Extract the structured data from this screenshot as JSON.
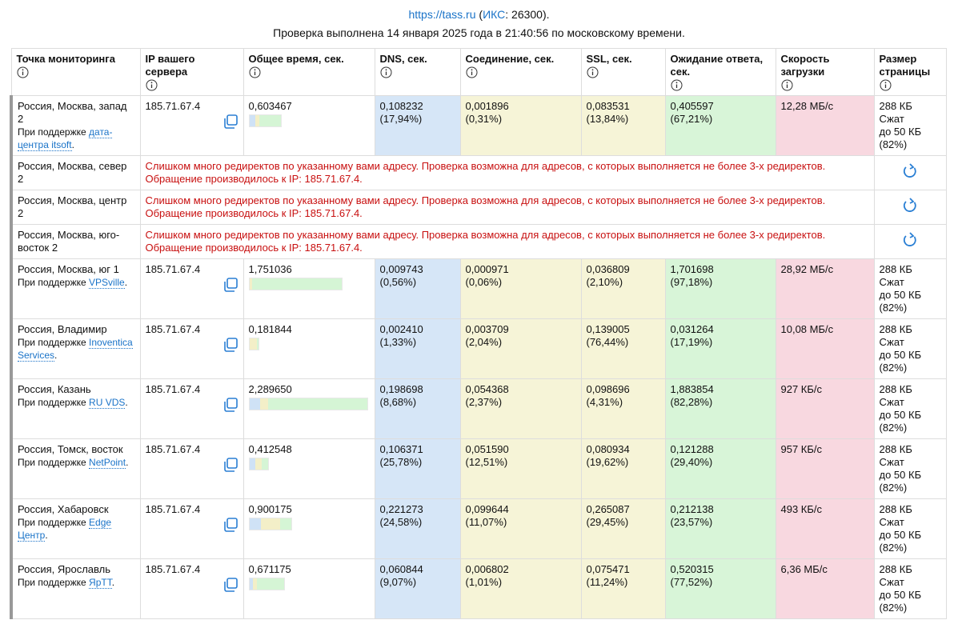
{
  "header": {
    "source_line": [
      {
        "text": "https://tass.ru",
        "link": true
      },
      {
        "text": " ("
      },
      {
        "text": "ИКС",
        "link": true
      },
      {
        "text": ": 26300)."
      }
    ],
    "check_line": "Проверка выполнена 14 января 2025 года в 21:40:56 по московскому времени."
  },
  "table": {
    "columns": [
      "Точка мониторинга",
      "IP вашего сервера",
      "Общее время, сек.",
      "DNS, сек.",
      "Соединение, сек.",
      "SSL, сек.",
      "Ожидание ответа, сек.",
      "Скорость загрузки",
      "Размер страницы"
    ],
    "support_prefix": "При поддержке",
    "support_suffix": ".",
    "rows": [
      {
        "color": "#d9531e",
        "location": "Россия, Москва, запад 2",
        "sponsor": "дата-центра itsoft",
        "ip": "185.71.67.4",
        "total": "0,603467",
        "dns": {
          "time": "0,108232",
          "share": "(17,94%)"
        },
        "conn": {
          "time": "0,001896",
          "share": "(0,31%)"
        },
        "ssl": {
          "time": "0,083531",
          "share": "(13,84%)"
        },
        "wait": {
          "time": "0,405597",
          "share": "(67,21%)"
        },
        "speed": "12,28 МБ/с",
        "size": [
          "288 КБ",
          "Сжат",
          "до 50 КБ",
          "(82%)"
        ]
      },
      {
        "color": "#f2d40f",
        "location": "Россия, Москва, север 2",
        "message": "Слишком много редиректов по указанному вами адресу. Проверка возможна для адресов, с которых выполняется не более 3-х редиректов.",
        "ip_note": "Обращение производилось к IP: 185.71.67.4."
      },
      {
        "color": "#8fbf78",
        "location": "Россия, Москва, центр 2",
        "message": "Слишком много редиректов по указанному вами адресу. Проверка возможна для адресов, с которых выполняется не более 3-х редиректов.",
        "ip_note": "Обращение производилось к IP: 185.71.67.4."
      },
      {
        "color": "#8b1a1a",
        "location": "Россия, Москва, юго-восток 2",
        "message": "Слишком много редиректов по указанному вами адресу. Проверка возможна для адресов, с которых выполняется не более 3-х редиректов.",
        "ip_note": "Обращение производилось к IP: 185.71.67.4."
      },
      {
        "color": "#7a3fc0",
        "location": "Россия, Москва, юг 1",
        "sponsor": "VPSville",
        "ip": "185.71.67.4",
        "total": "1,751036",
        "dns": {
          "time": "0,009743",
          "share": "(0,56%)"
        },
        "conn": {
          "time": "0,000971",
          "share": "(0,06%)"
        },
        "ssl": {
          "time": "0,036809",
          "share": "(2,10%)"
        },
        "wait": {
          "time": "1,701698",
          "share": "(97,18%)"
        },
        "speed": "28,92 МБ/с",
        "size": [
          "288 КБ",
          "Сжат",
          "до 50 КБ",
          "(82%)"
        ]
      },
      {
        "color": "#3f6a9a",
        "location": "Россия, Владимир",
        "sponsor": "Inoventica Services",
        "ip": "185.71.67.4",
        "total": "0,181844",
        "dns": {
          "time": "0,002410",
          "share": "(1,33%)"
        },
        "conn": {
          "time": "0,003709",
          "share": "(2,04%)"
        },
        "ssl": {
          "time": "0,139005",
          "share": "(76,44%)"
        },
        "wait": {
          "time": "0,031264",
          "share": "(17,19%)"
        },
        "speed": "10,08 МБ/с",
        "size": [
          "288 КБ",
          "Сжат",
          "до 50 КБ",
          "(82%)"
        ]
      },
      {
        "color": "#d670e0",
        "location": "Россия, Казань",
        "sponsor": "RU VDS",
        "ip": "185.71.67.4",
        "total": "2,289650",
        "dns": {
          "time": "0,198698",
          "share": "(8,68%)"
        },
        "conn": {
          "time": "0,054368",
          "share": "(2,37%)"
        },
        "ssl": {
          "time": "0,098696",
          "share": "(4,31%)"
        },
        "wait": {
          "time": "1,883854",
          "share": "(82,28%)"
        },
        "speed": "927 КБ/с",
        "size": [
          "288 КБ",
          "Сжат",
          "до 50 КБ",
          "(82%)"
        ]
      },
      {
        "color": "#777777",
        "location": "Россия, Томск, восток",
        "sponsor": "NetPoint",
        "ip": "185.71.67.4",
        "total": "0,412548",
        "dns": {
          "time": "0,106371",
          "share": "(25,78%)"
        },
        "conn": {
          "time": "0,051590",
          "share": "(12,51%)"
        },
        "ssl": {
          "time": "0,080934",
          "share": "(19,62%)"
        },
        "wait": {
          "time": "0,121288",
          "share": "(29,40%)"
        },
        "speed": "957 КБ/с",
        "size": [
          "288 КБ",
          "Сжат",
          "до 50 КБ",
          "(82%)"
        ]
      },
      {
        "color": "#5e1616",
        "location": "Россия, Хабаровск",
        "sponsor": "Edge Центр",
        "ip": "185.71.67.4",
        "total": "0,900175",
        "dns": {
          "time": "0,221273",
          "share": "(24,58%)"
        },
        "conn": {
          "time": "0,099644",
          "share": "(11,07%)"
        },
        "ssl": {
          "time": "0,265087",
          "share": "(29,45%)"
        },
        "wait": {
          "time": "0,212138",
          "share": "(23,57%)"
        },
        "speed": "493 КБ/с",
        "size": [
          "288 КБ",
          "Сжат",
          "до 50 КБ",
          "(82%)"
        ]
      },
      {
        "color": "#a020a8",
        "location": "Россия, Ярославль",
        "sponsor": "ЯрТТ",
        "ip": "185.71.67.4",
        "total": "0,671175",
        "dns": {
          "time": "0,060844",
          "share": "(9,07%)"
        },
        "conn": {
          "time": "0,006802",
          "share": "(1,01%)"
        },
        "ssl": {
          "time": "0,075471",
          "share": "(11,24%)"
        },
        "wait": {
          "time": "0,520315",
          "share": "(77,52%)"
        },
        "speed": "6,36 МБ/с",
        "size": [
          "288 КБ",
          "Сжат",
          "до 50 КБ",
          "(82%)"
        ]
      }
    ]
  }
}
